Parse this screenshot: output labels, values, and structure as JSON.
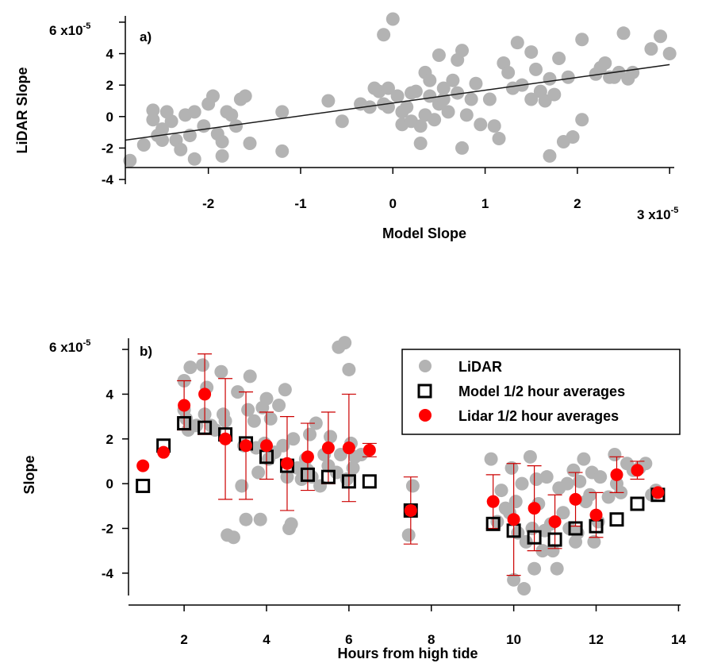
{
  "chart_data": [
    {
      "panel_label": "a)",
      "type": "scatter",
      "xlabel": "Model Slope",
      "ylabel": "LiDAR Slope",
      "xlim": [
        -2.9,
        3.05
      ],
      "ylim": [
        -4.3,
        6.4
      ],
      "x_ticks": [
        -2,
        -1,
        0,
        1,
        2,
        3
      ],
      "y_ticks": [
        -4,
        -2,
        0,
        2,
        4,
        6
      ],
      "x_exponent_label": "x10",
      "x_exponent_power": "-5",
      "y_exponent_label": "x10",
      "y_exponent_power": "-5",
      "grid": false,
      "colors": {
        "points": "#b3b3b3",
        "fit": "#1a1a1a"
      },
      "series": [
        {
          "values": [
            [
              -2.85,
              -2.8
            ],
            [
              -2.7,
              -1.8
            ],
            [
              -2.6,
              0.4
            ],
            [
              -2.6,
              -0.2
            ],
            [
              -2.55,
              -1.2
            ],
            [
              -2.5,
              -0.8
            ],
            [
              -2.5,
              -1.5
            ],
            [
              -2.45,
              0.3
            ],
            [
              -2.4,
              -0.3
            ],
            [
              -2.35,
              -1.5
            ],
            [
              -2.3,
              -2.1
            ],
            [
              -2.25,
              0.1
            ],
            [
              -2.2,
              -1.2
            ],
            [
              -2.15,
              0.3
            ],
            [
              -2.15,
              -2.7
            ],
            [
              -2.05,
              -0.6
            ],
            [
              -2.0,
              0.8
            ],
            [
              -1.95,
              1.3
            ],
            [
              -1.9,
              -1.1
            ],
            [
              -1.85,
              -1.6
            ],
            [
              -1.85,
              -2.5
            ],
            [
              -1.8,
              0.3
            ],
            [
              -1.75,
              0.1
            ],
            [
              -1.7,
              -0.6
            ],
            [
              -1.65,
              1.1
            ],
            [
              -1.6,
              1.3
            ],
            [
              -1.55,
              -1.7
            ],
            [
              -1.2,
              0.3
            ],
            [
              -1.2,
              -2.2
            ],
            [
              -0.7,
              1.0
            ],
            [
              -0.55,
              -0.3
            ],
            [
              -0.35,
              0.8
            ],
            [
              -0.25,
              0.6
            ],
            [
              -0.2,
              1.8
            ],
            [
              -0.15,
              1.6
            ],
            [
              -0.1,
              0.8
            ],
            [
              -0.1,
              5.2
            ],
            [
              -0.05,
              0.6
            ],
            [
              -0.05,
              1.8
            ],
            [
              0.0,
              6.2
            ],
            [
              0.05,
              1.3
            ],
            [
              0.1,
              0.3
            ],
            [
              0.1,
              -0.5
            ],
            [
              0.15,
              0.6
            ],
            [
              0.2,
              1.5
            ],
            [
              0.2,
              -0.3
            ],
            [
              0.25,
              1.6
            ],
            [
              0.3,
              -0.6
            ],
            [
              0.3,
              -1.7
            ],
            [
              0.35,
              0.1
            ],
            [
              0.35,
              2.8
            ],
            [
              0.4,
              2.3
            ],
            [
              0.4,
              1.3
            ],
            [
              0.45,
              -0.2
            ],
            [
              0.5,
              0.8
            ],
            [
              0.5,
              3.9
            ],
            [
              0.55,
              1.1
            ],
            [
              0.55,
              1.8
            ],
            [
              0.6,
              0.3
            ],
            [
              0.65,
              2.3
            ],
            [
              0.7,
              3.6
            ],
            [
              0.7,
              1.5
            ],
            [
              0.75,
              4.2
            ],
            [
              0.75,
              -2.0
            ],
            [
              0.8,
              0.1
            ],
            [
              0.85,
              1.1
            ],
            [
              0.9,
              2.1
            ],
            [
              0.95,
              -0.5
            ],
            [
              1.05,
              1.1
            ],
            [
              1.1,
              -0.6
            ],
            [
              1.15,
              -1.4
            ],
            [
              1.2,
              3.4
            ],
            [
              1.25,
              2.8
            ],
            [
              1.3,
              1.8
            ],
            [
              1.35,
              4.7
            ],
            [
              1.4,
              2.0
            ],
            [
              1.5,
              4.1
            ],
            [
              1.5,
              1.1
            ],
            [
              1.55,
              3.0
            ],
            [
              1.6,
              1.6
            ],
            [
              1.65,
              1.0
            ],
            [
              1.7,
              -2.5
            ],
            [
              1.7,
              2.4
            ],
            [
              1.75,
              1.4
            ],
            [
              1.8,
              3.7
            ],
            [
              1.85,
              -1.6
            ],
            [
              1.9,
              2.5
            ],
            [
              1.95,
              -1.3
            ],
            [
              2.05,
              -0.2
            ],
            [
              2.05,
              4.9
            ],
            [
              2.2,
              2.7
            ],
            [
              2.25,
              3.1
            ],
            [
              2.3,
              3.4
            ],
            [
              2.35,
              2.5
            ],
            [
              2.4,
              2.5
            ],
            [
              2.45,
              2.8
            ],
            [
              2.5,
              5.3
            ],
            [
              2.55,
              2.4
            ],
            [
              2.6,
              2.8
            ],
            [
              2.8,
              4.3
            ],
            [
              2.9,
              5.1
            ],
            [
              3.0,
              4.0
            ]
          ]
        }
      ],
      "fit_line": {
        "x": [
          -2.9,
          3.0
        ],
        "y": [
          -1.5,
          3.3
        ]
      }
    },
    {
      "panel_label": "b)",
      "type": "scatter",
      "xlabel": "Hours from high tide",
      "ylabel": "Slope",
      "xlim": [
        0.65,
        14.05
      ],
      "ylim": [
        -5.0,
        6.5
      ],
      "x_ticks": [
        2,
        4,
        6,
        8,
        10,
        12,
        14
      ],
      "y_ticks": [
        -4,
        -2,
        0,
        2,
        4,
        6
      ],
      "y_exponent_label": "x10",
      "y_exponent_power": "-5",
      "grid": false,
      "legend_position": "top-right",
      "colors": {
        "lidar_points": "#b3b3b3",
        "model_avg": "#000000",
        "lidar_avg": "#ff0000",
        "error_bar": "#cc0000"
      },
      "series": [
        {
          "name": "LiDAR",
          "values": [
            [
              2.0,
              4.6
            ],
            [
              2.0,
              3.3
            ],
            [
              2.05,
              2.9
            ],
            [
              2.1,
              2.4
            ],
            [
              2.15,
              5.2
            ],
            [
              2.3,
              2.6
            ],
            [
              2.45,
              5.3
            ],
            [
              2.5,
              3.1
            ],
            [
              2.55,
              4.3
            ],
            [
              2.65,
              2.6
            ],
            [
              2.75,
              2.4
            ],
            [
              2.9,
              5.0
            ],
            [
              2.95,
              3.1
            ],
            [
              3.0,
              2.8
            ],
            [
              3.05,
              -2.3
            ],
            [
              3.2,
              -2.4
            ],
            [
              3.3,
              4.1
            ],
            [
              3.4,
              -0.1
            ],
            [
              3.45,
              1.7
            ],
            [
              3.5,
              -1.6
            ],
            [
              3.55,
              3.3
            ],
            [
              3.6,
              4.8
            ],
            [
              3.7,
              2.8
            ],
            [
              3.75,
              1.6
            ],
            [
              3.8,
              0.5
            ],
            [
              3.85,
              -1.6
            ],
            [
              3.9,
              3.4
            ],
            [
              3.95,
              1.8
            ],
            [
              4.0,
              3.8
            ],
            [
              4.05,
              1.1
            ],
            [
              4.1,
              2.9
            ],
            [
              4.2,
              1.4
            ],
            [
              4.3,
              3.5
            ],
            [
              4.4,
              1.7
            ],
            [
              4.45,
              4.2
            ],
            [
              4.5,
              0.3
            ],
            [
              4.55,
              -2.0
            ],
            [
              4.6,
              -1.8
            ],
            [
              4.65,
              2.0
            ],
            [
              4.75,
              0.7
            ],
            [
              4.85,
              0.2
            ],
            [
              4.95,
              1.1
            ],
            [
              5.0,
              0.6
            ],
            [
              5.05,
              2.2
            ],
            [
              5.1,
              0.3
            ],
            [
              5.2,
              2.7
            ],
            [
              5.3,
              -0.1
            ],
            [
              5.4,
              1.3
            ],
            [
              5.5,
              0.8
            ],
            [
              5.55,
              2.1
            ],
            [
              5.7,
              0.5
            ],
            [
              5.75,
              6.1
            ],
            [
              5.8,
              1.3
            ],
            [
              5.9,
              6.3
            ],
            [
              5.95,
              0.2
            ],
            [
              6.0,
              5.1
            ],
            [
              6.05,
              1.8
            ],
            [
              6.1,
              0.7
            ],
            [
              6.15,
              1.2
            ],
            [
              6.3,
              1.3
            ],
            [
              7.45,
              -2.3
            ],
            [
              7.55,
              -0.1
            ],
            [
              9.45,
              1.1
            ],
            [
              9.6,
              -1.7
            ],
            [
              9.7,
              -0.3
            ],
            [
              9.8,
              -1.1
            ],
            [
              9.9,
              -1.3
            ],
            [
              9.95,
              0.7
            ],
            [
              10.0,
              -4.3
            ],
            [
              10.05,
              -0.8
            ],
            [
              10.1,
              -2.2
            ],
            [
              10.2,
              0.0
            ],
            [
              10.25,
              -4.7
            ],
            [
              10.3,
              -2.6
            ],
            [
              10.4,
              1.2
            ],
            [
              10.45,
              -2.0
            ],
            [
              10.5,
              -3.8
            ],
            [
              10.55,
              0.2
            ],
            [
              10.6,
              -0.9
            ],
            [
              10.7,
              -3.0
            ],
            [
              10.75,
              -2.1
            ],
            [
              10.8,
              0.3
            ],
            [
              10.9,
              -1.8
            ],
            [
              10.95,
              -3.0
            ],
            [
              11.05,
              -3.8
            ],
            [
              11.1,
              -0.2
            ],
            [
              11.2,
              -1.3
            ],
            [
              11.3,
              0.0
            ],
            [
              11.35,
              -2.0
            ],
            [
              11.45,
              0.6
            ],
            [
              11.5,
              -2.6
            ],
            [
              11.55,
              -2.2
            ],
            [
              11.6,
              0.1
            ],
            [
              11.7,
              1.1
            ],
            [
              11.75,
              -0.8
            ],
            [
              11.85,
              -0.5
            ],
            [
              11.9,
              0.5
            ],
            [
              11.95,
              -2.6
            ],
            [
              12.05,
              -1.7
            ],
            [
              12.1,
              0.3
            ],
            [
              12.3,
              -0.6
            ],
            [
              12.45,
              1.3
            ],
            [
              12.5,
              0.0
            ],
            [
              12.6,
              -0.4
            ],
            [
              12.75,
              0.9
            ],
            [
              12.9,
              0.6
            ],
            [
              13.05,
              0.7
            ],
            [
              13.2,
              0.9
            ],
            [
              13.35,
              -0.5
            ],
            [
              13.45,
              -0.3
            ]
          ]
        },
        {
          "name": "Model 1/2 hour averages",
          "values": [
            [
              1.0,
              -0.1
            ],
            [
              1.5,
              1.7
            ],
            [
              2.0,
              2.7
            ],
            [
              2.5,
              2.5
            ],
            [
              3.0,
              2.2
            ],
            [
              3.5,
              1.8
            ],
            [
              4.0,
              1.2
            ],
            [
              4.5,
              0.8
            ],
            [
              5.0,
              0.4
            ],
            [
              5.5,
              0.3
            ],
            [
              6.0,
              0.1
            ],
            [
              6.5,
              0.1
            ],
            [
              7.5,
              -1.2
            ],
            [
              9.5,
              -1.8
            ],
            [
              10.0,
              -2.1
            ],
            [
              10.5,
              -2.4
            ],
            [
              11.0,
              -2.5
            ],
            [
              11.5,
              -2.0
            ],
            [
              12.0,
              -1.9
            ],
            [
              12.5,
              -1.6
            ],
            [
              13.0,
              -0.9
            ],
            [
              13.5,
              -0.5
            ]
          ]
        },
        {
          "name": "Lidar 1/2 hour averages",
          "values": [
            [
              1.0,
              0.8,
              null
            ],
            [
              1.5,
              1.4,
              null
            ],
            [
              2.0,
              3.5,
              1.1
            ],
            [
              2.5,
              4.0,
              1.8
            ],
            [
              3.0,
              2.0,
              2.7
            ],
            [
              3.5,
              1.7,
              2.4
            ],
            [
              4.0,
              1.7,
              1.5
            ],
            [
              4.5,
              0.9,
              2.1
            ],
            [
              5.0,
              1.2,
              1.5
            ],
            [
              5.5,
              1.6,
              1.6
            ],
            [
              6.0,
              1.6,
              2.4
            ],
            [
              6.5,
              1.5,
              0.3
            ],
            [
              7.5,
              -1.2,
              1.5
            ],
            [
              9.5,
              -0.8,
              1.2
            ],
            [
              10.0,
              -1.6,
              2.5
            ],
            [
              10.5,
              -1.1,
              1.9
            ],
            [
              11.0,
              -1.7,
              1.2
            ],
            [
              11.5,
              -0.7,
              1.2
            ],
            [
              12.0,
              -1.4,
              1.0
            ],
            [
              12.5,
              0.4,
              0.8
            ],
            [
              13.0,
              0.6,
              0.4
            ],
            [
              13.5,
              -0.4,
              null
            ]
          ]
        }
      ]
    }
  ]
}
